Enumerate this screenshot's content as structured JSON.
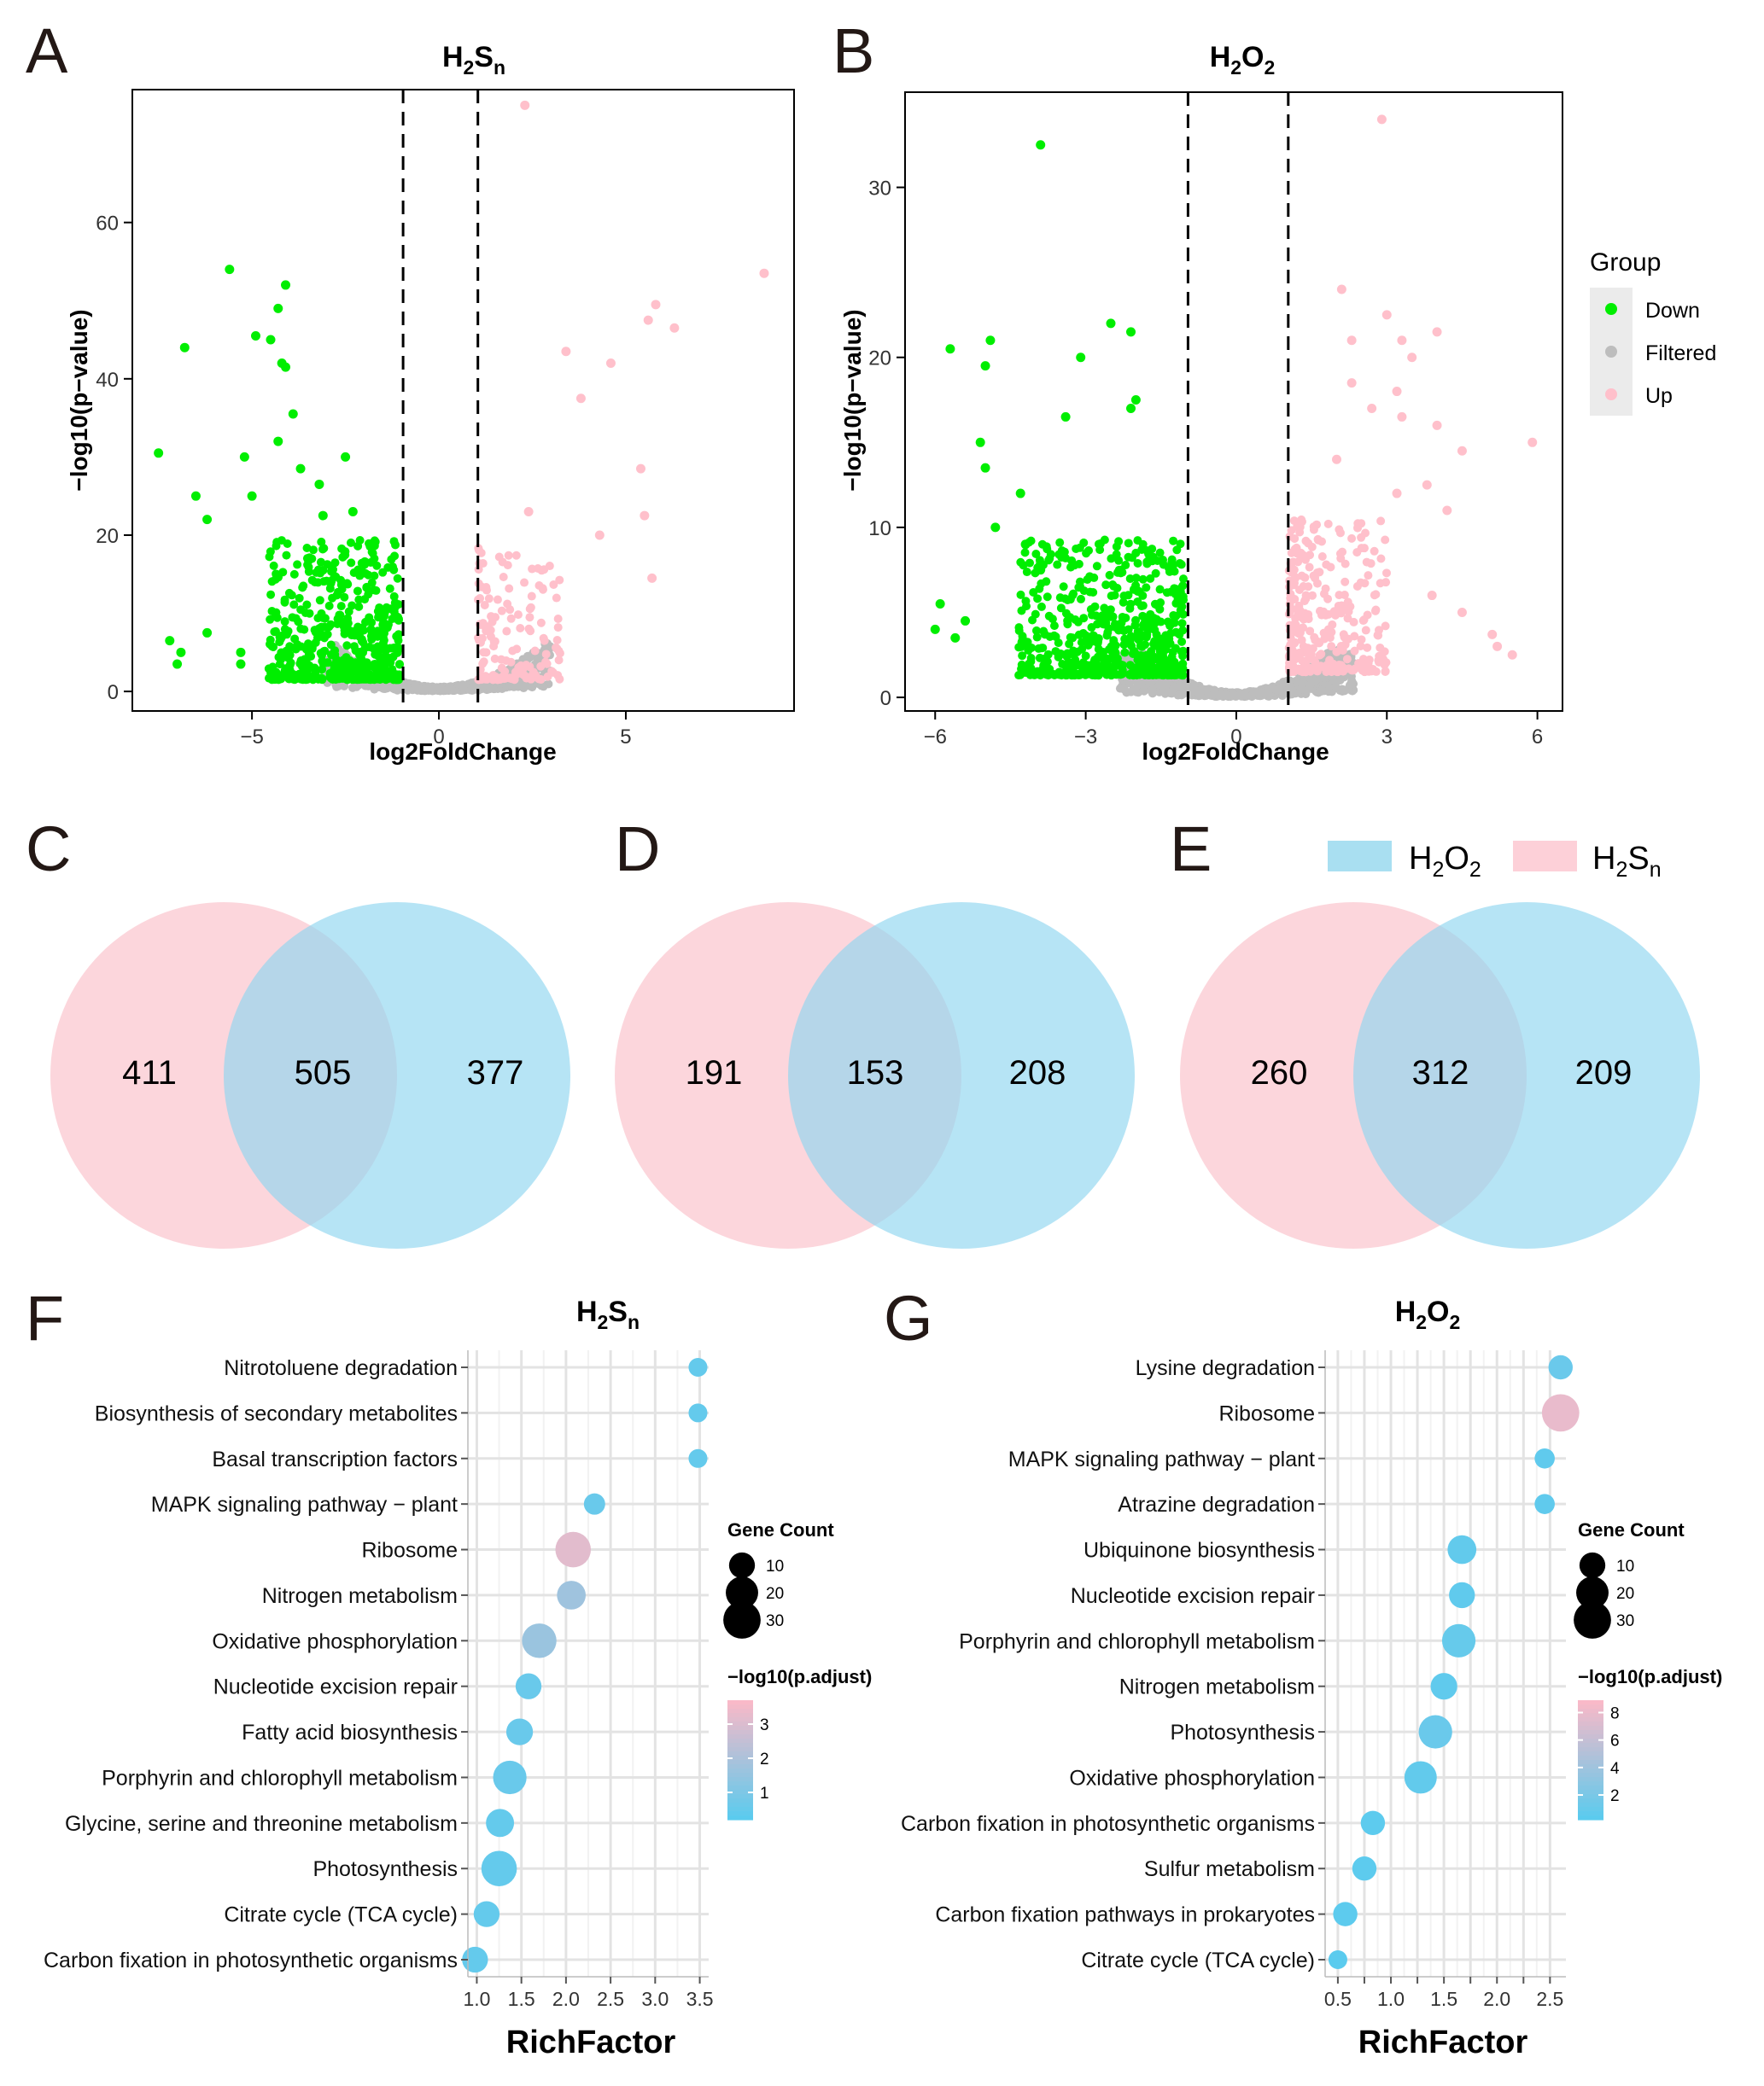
{
  "figure": {
    "panels": {
      "A": "A",
      "B": "B",
      "C": "C",
      "D": "D",
      "E": "E",
      "F": "F",
      "G": "G"
    }
  },
  "colors": {
    "down": "#00ee00",
    "filtered": "#bdbdbd",
    "up": "#ffc0cb",
    "h2o2": "#87ceeb",
    "h2sn": "#ffb6c1",
    "venn_pink": "#fbc8d0",
    "venn_blue": "#8fd6ef",
    "dot_low": "#5bcbee",
    "dot_high": "#f9b9c8"
  },
  "legend_group": {
    "title": "Group",
    "items": [
      "Down",
      "Filtered",
      "Up"
    ]
  },
  "venn_legend": {
    "h2o2": {
      "base": "H",
      "sub1": "2",
      "mid": "O",
      "sub2": "2"
    },
    "h2sn": {
      "base": "H",
      "sub1": "2",
      "mid": "S",
      "sub2": "n"
    }
  },
  "chart_data": [
    {
      "id": "A",
      "type": "scatter",
      "title": {
        "base": "H",
        "sub1": "2",
        "mid": "S",
        "sub2": "n"
      },
      "xlabel": "log2FoldChange",
      "ylabel": "−log10(p−value)",
      "xlim": [
        -8.2,
        9.5
      ],
      "ylim": [
        -2.5,
        77
      ],
      "xticks": [
        -5,
        0,
        5
      ],
      "yticks": [
        0,
        20,
        40,
        60
      ],
      "thresholds": [
        -1,
        1
      ],
      "series": [
        {
          "name": "Down",
          "points": [
            [
              -7.5,
              30.5
            ],
            [
              -6.8,
              44
            ],
            [
              -6.5,
              25
            ],
            [
              -5.6,
              54
            ],
            [
              -5.2,
              30
            ],
            [
              -5,
              25
            ],
            [
              -4.9,
              45.5
            ],
            [
              -4.3,
              49
            ],
            [
              -4.2,
              42
            ],
            [
              -4.1,
              52
            ],
            [
              -3.9,
              35.5
            ],
            [
              -4.5,
              45
            ],
            [
              -4.3,
              32
            ],
            [
              -4.1,
              41.5
            ],
            [
              -3.7,
              28.5
            ],
            [
              -3.2,
              26.5
            ],
            [
              -3.1,
              22.5
            ],
            [
              -2.5,
              30
            ],
            [
              -2.3,
              23
            ],
            [
              -6.2,
              22
            ],
            [
              -7.2,
              6.5
            ],
            [
              -6.2,
              7.5
            ],
            [
              -5.3,
              5
            ],
            [
              -5.3,
              3.5
            ],
            [
              -6.9,
              5
            ],
            [
              -7,
              3.5
            ]
          ]
        },
        {
          "name": "Up",
          "points": [
            [
              2.3,
              75
            ],
            [
              8.7,
              53.5
            ],
            [
              5.8,
              49.5
            ],
            [
              5.6,
              47.5
            ],
            [
              6.3,
              46.5
            ],
            [
              3.4,
              43.5
            ],
            [
              4.6,
              42
            ],
            [
              3.8,
              37.5
            ],
            [
              5.4,
              28.5
            ],
            [
              5.5,
              22.5
            ],
            [
              5.7,
              14.5
            ],
            [
              2.4,
              23
            ],
            [
              4.3,
              20
            ]
          ]
        },
        {
          "name": "Filtered",
          "points": []
        }
      ],
      "generated_clusters": {
        "down": {
          "n": 520,
          "seed": 11
        },
        "up": {
          "n": 150,
          "seed": 17
        },
        "filtered": {
          "n": 650,
          "seed": 23
        }
      }
    },
    {
      "id": "B",
      "type": "scatter",
      "title": {
        "base": "H",
        "sub1": "2",
        "mid": "O",
        "sub2": "2"
      },
      "xlabel": "log2FoldChange",
      "ylabel": "−log10(p−value)",
      "xlim": [
        -6.6,
        6.5
      ],
      "ylim": [
        -0.8,
        35.6
      ],
      "xticks": [
        -6,
        -3,
        0,
        3,
        6
      ],
      "yticks": [
        0,
        10,
        20,
        30
      ],
      "thresholds": [
        -1,
        1
      ],
      "series": [
        {
          "name": "Down",
          "points": [
            [
              -3.9,
              32.5
            ],
            [
              -2.5,
              22
            ],
            [
              -2.1,
              21.5
            ],
            [
              -5.7,
              20.5
            ],
            [
              -4.9,
              21
            ],
            [
              -3.1,
              20
            ],
            [
              -5,
              19.5
            ],
            [
              -2,
              17.5
            ],
            [
              -3.4,
              16.5
            ],
            [
              -2.1,
              17
            ],
            [
              -5.1,
              15
            ],
            [
              -5,
              13.5
            ],
            [
              -4.3,
              12
            ],
            [
              -4.8,
              10
            ],
            [
              -4.2,
              9
            ],
            [
              -3.9,
              7.5
            ],
            [
              -5.9,
              5.5
            ],
            [
              -5.4,
              4.5
            ],
            [
              -6,
              4
            ],
            [
              -5.6,
              3.5
            ]
          ]
        },
        {
          "name": "Up",
          "points": [
            [
              2.9,
              34
            ],
            [
              2.1,
              24
            ],
            [
              3,
              22.5
            ],
            [
              3.3,
              21
            ],
            [
              4,
              21.5
            ],
            [
              2.3,
              21
            ],
            [
              3.5,
              20
            ],
            [
              2.3,
              18.5
            ],
            [
              3.2,
              18
            ],
            [
              2.7,
              17
            ],
            [
              3.3,
              16.5
            ],
            [
              4,
              16
            ],
            [
              4.5,
              14.5
            ],
            [
              5.9,
              15
            ],
            [
              3.2,
              12
            ],
            [
              4.2,
              11
            ],
            [
              3.8,
              12.5
            ],
            [
              2,
              14
            ],
            [
              3.9,
              6
            ],
            [
              4.5,
              5
            ],
            [
              5.1,
              3.7
            ],
            [
              5.5,
              2.5
            ],
            [
              5.2,
              3
            ]
          ]
        },
        {
          "name": "Filtered",
          "points": []
        }
      ],
      "generated_clusters": {
        "down": {
          "n": 600,
          "seed": 31
        },
        "up": {
          "n": 300,
          "seed": 37
        },
        "filtered": {
          "n": 700,
          "seed": 41
        }
      }
    },
    {
      "id": "C",
      "type": "venn",
      "left": 411,
      "overlap": 505,
      "right": 377
    },
    {
      "id": "D",
      "type": "venn",
      "left": 191,
      "overlap": 153,
      "right": 208
    },
    {
      "id": "E",
      "type": "venn",
      "left": 260,
      "overlap": 312,
      "right": 209
    },
    {
      "id": "F",
      "type": "scatter",
      "title": {
        "base": "H",
        "sub1": "2",
        "mid": "S",
        "sub2": "n"
      },
      "xlabel": "RichFactor",
      "xlim": [
        0.9,
        3.6
      ],
      "xticks": [
        1.0,
        1.5,
        2.0,
        2.5,
        3.0,
        3.5
      ],
      "xtick_labels": [
        "1.0",
        "1.5",
        "2.0",
        "2.5",
        "3.0",
        "3.5"
      ],
      "categories": [
        "Nitrotoluene degradation",
        "Biosynthesis of secondary metabolites",
        "Basal transcription factors",
        "MAPK signaling pathway − plant",
        "Ribosome",
        "Nitrogen metabolism",
        "Oxidative phosphorylation",
        "Nucleotide excision repair",
        "Fatty acid biosynthesis",
        "Porphyrin and chlorophyll metabolism",
        "Glycine, serine and threonine metabolism",
        "Photosynthesis",
        "Citrate cycle (TCA cycle)",
        "Carbon fixation in photosynthetic organisms"
      ],
      "rich_factor": [
        3.48,
        3.48,
        3.48,
        2.32,
        2.08,
        2.06,
        1.7,
        1.58,
        1.48,
        1.37,
        1.26,
        1.25,
        1.11,
        0.98
      ],
      "gene_count": [
        3,
        3,
        3,
        5,
        26,
        14,
        24,
        10,
        11,
        22,
        13,
        26,
        10,
        10
      ],
      "neglog10_padj": [
        0.4,
        0.4,
        0.4,
        0.5,
        3.2,
        1.7,
        1.6,
        0.5,
        0.5,
        0.5,
        0.4,
        0.4,
        0.4,
        0.4
      ],
      "size_legend": {
        "title": "Gene Count",
        "values": [
          10,
          20,
          30
        ]
      },
      "color_legend": {
        "title": "−log10(p.adjust)",
        "ticks": [
          1,
          2,
          3
        ],
        "range": [
          0.2,
          3.7
        ]
      }
    },
    {
      "id": "G",
      "type": "scatter",
      "title": {
        "base": "H",
        "sub1": "2",
        "mid": "O",
        "sub2": "2"
      },
      "xlabel": "RichFactor",
      "xlim": [
        0.38,
        2.65
      ],
      "xticks": [
        0.5,
        0.75,
        1.0,
        1.25,
        1.5,
        1.75,
        2.0,
        2.25,
        2.5
      ],
      "xtick_labels": [
        "0.5",
        "",
        "1.0",
        "",
        "1.5",
        "",
        "2.0",
        "",
        "2.5"
      ],
      "categories": [
        "Lysine degradation",
        "Ribosome",
        "MAPK signaling pathway − plant",
        "Atrazine degradation",
        "Ubiquinone biosynthesis",
        "Nucleotide excision repair",
        "Porphyrin and chlorophyll metabolism",
        "Nitrogen metabolism",
        "Photosynthesis",
        "Oxidative phosphorylation",
        "Carbon fixation in photosynthetic organisms",
        "Sulfur metabolism",
        "Carbon fixation pathways in prokaryotes",
        "Citrate cycle (TCA cycle)"
      ],
      "rich_factor": [
        2.6,
        2.6,
        2.45,
        2.45,
        1.67,
        1.67,
        1.64,
        1.5,
        1.42,
        1.28,
        0.83,
        0.75,
        0.57,
        0.5
      ],
      "gene_count": [
        8,
        30,
        4,
        4,
        14,
        10,
        22,
        11,
        22,
        20,
        8,
        8,
        8,
        3
      ],
      "neglog10_padj": [
        1.0,
        8.0,
        0.5,
        0.5,
        0.6,
        0.5,
        0.8,
        0.5,
        1.0,
        0.6,
        0.3,
        0.3,
        0.3,
        0.2
      ],
      "size_legend": {
        "title": "Gene Count",
        "values": [
          10,
          20,
          30
        ]
      },
      "color_legend": {
        "title": "−log10(p.adjust)",
        "ticks": [
          2,
          4,
          6,
          8
        ],
        "range": [
          0.2,
          8.9
        ]
      }
    }
  ]
}
